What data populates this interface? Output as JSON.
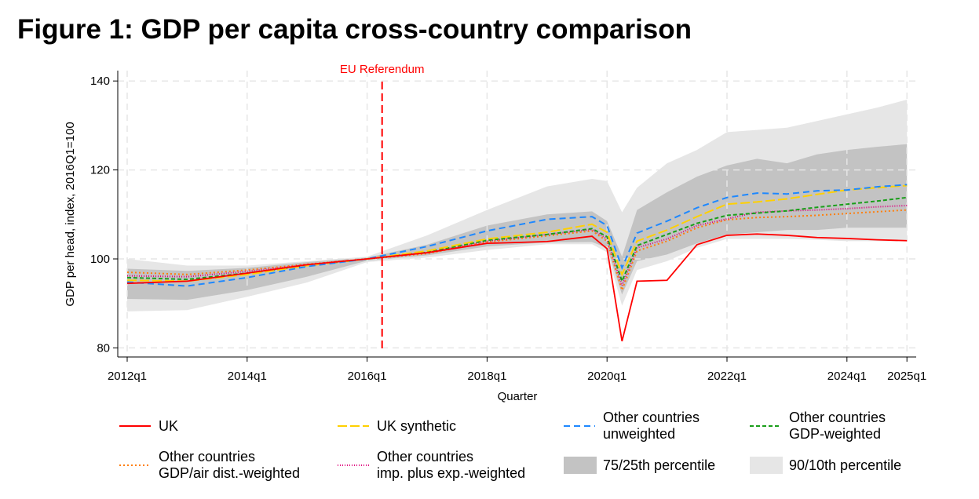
{
  "title": "Figure 1: GDP per capita cross-country comparison",
  "chart_data": {
    "type": "line",
    "title": "Figure 1: GDP per capita cross-country comparison",
    "xlabel": "Quarter",
    "ylabel": "GDP per head, index, 2016Q1=100",
    "xlim": [
      2012.0,
      2025.0
    ],
    "ylim": [
      78,
      143
    ],
    "yticks": [
      80,
      100,
      120,
      140
    ],
    "ytick_labels": [
      "80",
      "100",
      "120",
      "140"
    ],
    "xticks": [
      2012,
      2014,
      2016,
      2018,
      2020,
      2022,
      2024,
      2025
    ],
    "xtick_labels": [
      "2012q1",
      "2014q1",
      "2016q1",
      "2018q1",
      "2020q1",
      "2022q1",
      "2024q1",
      "2025q1"
    ],
    "grid": true,
    "annotation": {
      "label": "EU Referendum",
      "x": 2016.25,
      "color": "#ff0000"
    },
    "x": [
      2012,
      2013,
      2014,
      2015,
      2016,
      2017,
      2018,
      2019,
      2019.75,
      2020,
      2020.25,
      2020.5,
      2021,
      2021.5,
      2022,
      2022.5,
      2023,
      2023.5,
      2024,
      2024.5,
      2025
    ],
    "bands": [
      {
        "name": "90/10th percentile",
        "color": "#e6e6e6",
        "low": [
          88.2,
          88.5,
          91.5,
          94.7,
          99.3,
          100.3,
          102,
          103.3,
          103.3,
          101.5,
          89.5,
          97.5,
          99.5,
          102.5,
          104.5,
          104.5,
          104.5,
          104.3,
          104,
          104,
          104
        ],
        "high": [
          100,
          98.5,
          98.5,
          99.5,
          100.5,
          105.3,
          111,
          116.3,
          118,
          117.5,
          110.5,
          116,
          121.5,
          124.5,
          128.5,
          129,
          129.5,
          131,
          132.5,
          134,
          135.8
        ]
      },
      {
        "name": "75/25th percentile",
        "color": "#c3c3c3",
        "low": [
          91,
          90.8,
          93,
          96,
          99.6,
          100.8,
          102.8,
          103.7,
          103.8,
          102.5,
          92,
          99.5,
          101,
          103.5,
          105.5,
          106,
          106.5,
          106.5,
          107,
          107,
          107
        ],
        "high": [
          97.8,
          97.3,
          98,
          99.3,
          100.3,
          103.2,
          107.5,
          110,
          110.7,
          108.5,
          100.5,
          111,
          115,
          118.5,
          121,
          122.5,
          121.5,
          123.5,
          124.5,
          125.2,
          125.8
        ]
      }
    ],
    "series": [
      {
        "name": "Other countries GDP/air dist.-weighted",
        "color": "#ff7f0e",
        "dash": "2 3",
        "values": [
          97,
          96.5,
          97.5,
          98.8,
          100,
          101.2,
          103.8,
          105.2,
          106.3,
          104,
          93,
          101.8,
          104,
          107,
          108.8,
          109.3,
          109.5,
          109.8,
          110.2,
          110.6,
          111
        ]
      },
      {
        "name": "Other countries imp. plus exp.-weighted",
        "color": "#e0007f",
        "dash": "1 2",
        "values": [
          96.2,
          96,
          97.2,
          98.7,
          100,
          101.4,
          104,
          105.5,
          106.6,
          104.5,
          94,
          102.5,
          104.5,
          107.5,
          109,
          110.5,
          110.8,
          111,
          111.3,
          111.7,
          112
        ]
      },
      {
        "name": "Other countries GDP-weighted",
        "color": "#1a9e1a",
        "dash": "5 3",
        "values": [
          95.8,
          95.4,
          96.8,
          98.5,
          100,
          101.5,
          104.2,
          105.5,
          106.8,
          105,
          95,
          103,
          105.5,
          108,
          109.8,
          110.3,
          110.8,
          111.6,
          112.3,
          113,
          113.8
        ]
      },
      {
        "name": "UK synthetic",
        "color": "#ffd000",
        "dash": "12 4",
        "values": [
          95.2,
          95,
          96.5,
          98.5,
          100,
          101.8,
          104.5,
          106,
          107.8,
          106,
          96.5,
          104,
          106.5,
          109.5,
          112.3,
          112.8,
          113.5,
          114.5,
          115.5,
          116,
          116.5
        ]
      },
      {
        "name": "Other countries unweighted",
        "color": "#1e88ff",
        "dash": "8 5",
        "values": [
          94.8,
          93.9,
          95.8,
          98.3,
          100,
          102.8,
          106.3,
          108.9,
          109.5,
          107.5,
          98,
          105.8,
          108.5,
          111.5,
          113.8,
          114.8,
          114.6,
          115.3,
          115.5,
          116.2,
          116.7
        ]
      },
      {
        "name": "UK",
        "color": "#ff0000",
        "dash": "",
        "values": [
          94.5,
          95,
          96.8,
          98.7,
          100,
          101.4,
          103.5,
          103.9,
          105.1,
          102.3,
          81.5,
          95,
          95.2,
          103.2,
          105.3,
          105.6,
          105.3,
          104.8,
          104.6,
          104.3,
          104.1
        ]
      }
    ]
  },
  "legend": [
    {
      "label": "UK"
    },
    {
      "label": "UK synthetic"
    },
    {
      "label": "Other countries\nunweighted"
    },
    {
      "label": "Other countries\nGDP-weighted"
    },
    {
      "label": "Other countries\nGDP/air dist.-weighted"
    },
    {
      "label": "Other countries\nimp. plus exp.-weighted"
    },
    {
      "label": "75/25th percentile"
    },
    {
      "label": "90/10th percentile"
    }
  ]
}
